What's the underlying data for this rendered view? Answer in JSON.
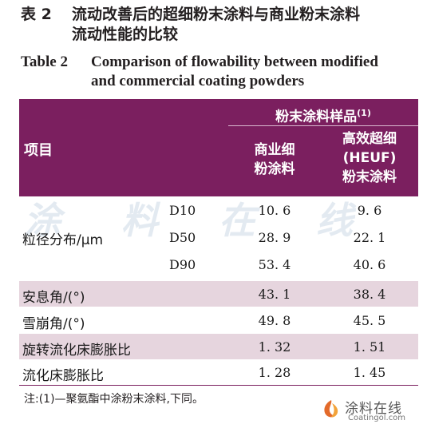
{
  "caption": {
    "cn_number": "表 2",
    "cn_line1": "流动改善后的超细粉末涂料与商业粉末涂料",
    "cn_line2": "流动性能的比较",
    "en_number": "Table 2",
    "en_line1": "Comparison of flowability between modified",
    "en_line2": "and commercial coating powders"
  },
  "header": {
    "group_label": "粉末涂料样品",
    "group_note": "(1)",
    "item_label": "项目",
    "col1": [
      "商业细",
      "粉涂料"
    ],
    "col2": [
      "高效超细",
      "(HEUF)",
      "粉末涂料"
    ]
  },
  "watermark": "涂 料 在 线",
  "rows": {
    "particle_label": "粒径分布/μm",
    "d10": {
      "sub": "D10",
      "v1": "10. 6",
      "v2": "9. 6"
    },
    "d50": {
      "sub": "D50",
      "v1": "28. 9",
      "v2": "22. 1"
    },
    "d90": {
      "sub": "D90",
      "v1": "53. 4",
      "v2": "40. 6"
    },
    "repose": {
      "label": "安息角/(°)",
      "v1": "43. 1",
      "v2": "38. 4"
    },
    "avalanche": {
      "label": "雪崩角/(°)",
      "v1": "49. 8",
      "v2": "45. 5"
    },
    "rotary": {
      "label": "旋转流化床膨胀比",
      "v1": "1. 32",
      "v2": "1. 51"
    },
    "fluidized": {
      "label": "流化床膨胀比",
      "v1": "1. 28",
      "v2": "1. 45"
    }
  },
  "note": "注:(1)—聚氨酯中涂粉末涂料,下同。",
  "logo": {
    "cn": "涂料在线",
    "en": "Coatingol.com",
    "color": "#e36a2a"
  }
}
